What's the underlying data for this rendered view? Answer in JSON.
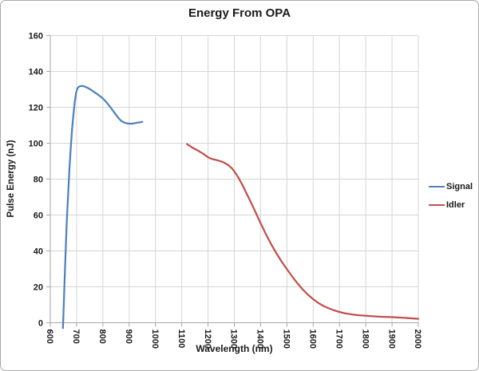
{
  "chart_data": {
    "type": "line",
    "title": "Energy From OPA",
    "xlabel": "Wavelength (nm)",
    "ylabel": "Pulse Energy (nJ)",
    "xlim": [
      600,
      2000
    ],
    "ylim": [
      0,
      160
    ],
    "x_ticks": [
      600,
      700,
      800,
      900,
      1000,
      1100,
      1200,
      1300,
      1400,
      1500,
      1600,
      1700,
      1800,
      1900,
      2000
    ],
    "y_ticks": [
      0,
      20,
      40,
      60,
      80,
      100,
      120,
      140,
      160
    ],
    "grid": true,
    "x_tick_label_rotation_deg": 90,
    "legend_position": "right-middle",
    "series": [
      {
        "name": "Signal",
        "color": "#4F81BD",
        "points": [
          [
            648,
            -3
          ],
          [
            650,
            5
          ],
          [
            654,
            22
          ],
          [
            658,
            38
          ],
          [
            663,
            57
          ],
          [
            668,
            72
          ],
          [
            673,
            86
          ],
          [
            678,
            98
          ],
          [
            683,
            108
          ],
          [
            688,
            116
          ],
          [
            693,
            123
          ],
          [
            698,
            128
          ],
          [
            703,
            130.5
          ],
          [
            708,
            131.4
          ],
          [
            715,
            131.8
          ],
          [
            722,
            131.9
          ],
          [
            730,
            131.6
          ],
          [
            740,
            131
          ],
          [
            750,
            130.2
          ],
          [
            760,
            129.2
          ],
          [
            770,
            128.2
          ],
          [
            780,
            127.2
          ],
          [
            790,
            126.1
          ],
          [
            800,
            124.9
          ],
          [
            810,
            123.4
          ],
          [
            820,
            121.7
          ],
          [
            830,
            119.8
          ],
          [
            840,
            117.8
          ],
          [
            850,
            115.8
          ],
          [
            860,
            113.9
          ],
          [
            870,
            112.4
          ],
          [
            880,
            111.6
          ],
          [
            890,
            111.1
          ],
          [
            900,
            110.9
          ],
          [
            910,
            110.9
          ],
          [
            920,
            111.1
          ],
          [
            930,
            111.4
          ],
          [
            940,
            111.6
          ],
          [
            950,
            111.9
          ]
        ]
      },
      {
        "name": "Idler",
        "color": "#C0504D",
        "points": [
          [
            1120,
            99.5
          ],
          [
            1140,
            97.6
          ],
          [
            1160,
            96
          ],
          [
            1180,
            94.3
          ],
          [
            1200,
            92.2
          ],
          [
            1215,
            91.2
          ],
          [
            1230,
            90.7
          ],
          [
            1245,
            90.1
          ],
          [
            1260,
            89.3
          ],
          [
            1275,
            88
          ],
          [
            1290,
            86.2
          ],
          [
            1300,
            84.3
          ],
          [
            1315,
            81
          ],
          [
            1330,
            77
          ],
          [
            1345,
            72.5
          ],
          [
            1360,
            68
          ],
          [
            1380,
            61.8
          ],
          [
            1400,
            55.5
          ],
          [
            1420,
            49.4
          ],
          [
            1440,
            43.8
          ],
          [
            1460,
            38.7
          ],
          [
            1480,
            34
          ],
          [
            1500,
            29.8
          ],
          [
            1520,
            25.8
          ],
          [
            1540,
            22
          ],
          [
            1560,
            18.6
          ],
          [
            1580,
            15.6
          ],
          [
            1600,
            13.1
          ],
          [
            1620,
            11
          ],
          [
            1640,
            9.3
          ],
          [
            1660,
            8
          ],
          [
            1680,
            6.9
          ],
          [
            1700,
            6
          ],
          [
            1720,
            5.3
          ],
          [
            1740,
            4.8
          ],
          [
            1760,
            4.4
          ],
          [
            1780,
            4.1
          ],
          [
            1800,
            3.9
          ],
          [
            1850,
            3.4
          ],
          [
            1900,
            3.1
          ],
          [
            1950,
            2.7
          ],
          [
            2000,
            2.2
          ]
        ]
      }
    ]
  },
  "styles": {
    "grid_color": "#D6D6D6",
    "axis_color": "#A6A6A6",
    "text_color": "#1A1A1A",
    "border_color": "#ABABAB",
    "background": "#FFFFFF"
  }
}
